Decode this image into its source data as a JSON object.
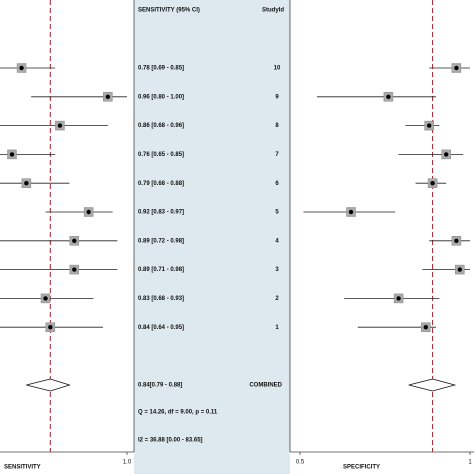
{
  "chart_data": {
    "type": "forest",
    "header_stat": "SENSITIVITY (95% CI)",
    "header_id": "StudyId",
    "studies": [
      "10",
      "9",
      "8",
      "7",
      "6",
      "5",
      "4",
      "3",
      "2",
      "1"
    ],
    "sensitivity": {
      "axis_label": "SENSITIVITY",
      "values": [
        0.78,
        0.96,
        0.86,
        0.76,
        0.79,
        0.92,
        0.89,
        0.89,
        0.83,
        0.84
      ],
      "low": [
        0.69,
        0.8,
        0.68,
        0.65,
        0.68,
        0.83,
        0.72,
        0.71,
        0.68,
        0.64
      ],
      "high": [
        0.85,
        1.0,
        0.96,
        0.85,
        0.88,
        0.97,
        0.98,
        0.98,
        0.93,
        0.95
      ],
      "value_labels": [
        "0.78 [0.69 - 0.85]",
        "0.96 [0.80 - 1.00]",
        "0.86 [0.68 - 0.96]",
        "0.76 [0.65 - 0.85]",
        "0.79 [0.68 - 0.88]",
        "0.92 [0.83 - 0.97]",
        "0.89 [0.72 - 0.98]",
        "0.89 [0.71 - 0.98]",
        "0.83 [0.68 - 0.93]",
        "0.84 [0.64 - 0.95]"
      ],
      "xlim": [
        0.735,
        1.0
      ],
      "xticks": [
        {
          "value": 1.0,
          "label": "1.0"
        }
      ]
    },
    "specificity": {
      "axis_label": "SPECIFICITY",
      "values": [
        0.96,
        0.76,
        0.88,
        0.93,
        0.89,
        0.65,
        0.96,
        0.97,
        0.79,
        0.87
      ],
      "low": [
        0.88,
        0.55,
        0.81,
        0.79,
        0.84,
        0.51,
        0.88,
        0.86,
        0.63,
        0.67
      ],
      "high": [
        1.0,
        0.9,
        0.91,
        0.98,
        0.93,
        0.78,
        1.0,
        1.0,
        0.91,
        0.9
      ],
      "xlim": [
        0.47,
        1.0
      ],
      "xticks": [
        0.5,
        1
      ]
    },
    "combined": {
      "label": "COMBINED",
      "sensitivity": {
        "value": 0.84,
        "low": 0.79,
        "high": 0.88,
        "value_label": "0.84[0.79 - 0.88]"
      },
      "specificity": {
        "value": 0.89,
        "low": 0.82,
        "high": 0.955
      }
    },
    "stats": [
      "Q = 14.26, df = 9.00, p =  0.11",
      "I2 = 36.88 [0.00 - 83.65]"
    ],
    "reference_color": "#a31f2a",
    "panel_color": "#dde9ef"
  }
}
